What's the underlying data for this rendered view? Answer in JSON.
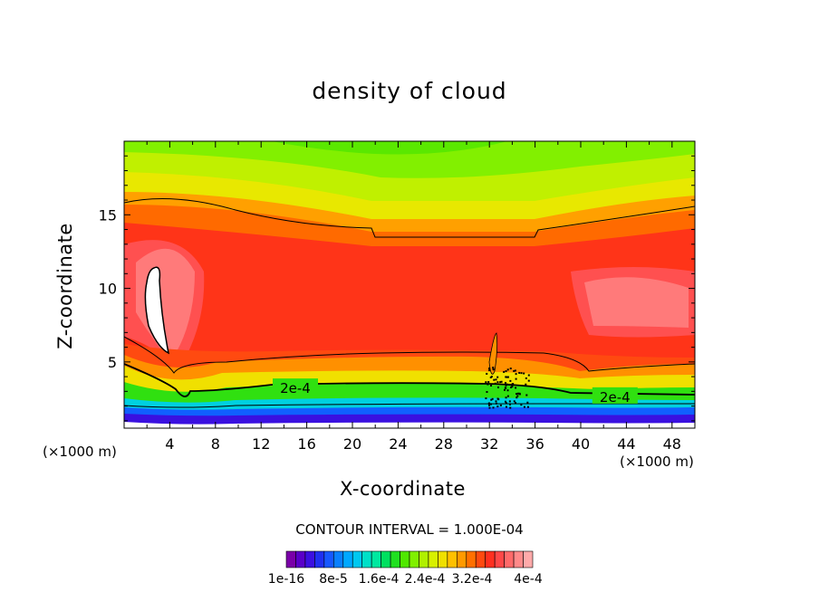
{
  "chart_data": {
    "type": "heatmap",
    "title": "density of cloud",
    "xlabel": "X-coordinate",
    "ylabel": "Z-coordinate",
    "x_unit_left": "(×1000 m)",
    "x_unit_right": "(×1000 m)",
    "xlim": [
      0,
      50
    ],
    "ylim": [
      0.5,
      20
    ],
    "x_ticks": [
      4,
      8,
      12,
      16,
      20,
      24,
      28,
      32,
      36,
      40,
      44,
      48
    ],
    "y_ticks": [
      5,
      10,
      15
    ],
    "contour_interval_text": "CONTOUR INTERVAL = 1.000E-04",
    "contour_labels": [
      {
        "text": "2e-4",
        "x": 15,
        "y": 3.2
      },
      {
        "text": "2e-4",
        "x": 43,
        "y": 2.6
      }
    ],
    "colorbar_labels": [
      "1e-16",
      "8e-5",
      "1.6e-4",
      "2.4e-4",
      "3.2e-4",
      "4e-4"
    ],
    "colorbar_colors": [
      "#7a00a8",
      "#5a00c8",
      "#3c10e0",
      "#2030f0",
      "#1858ff",
      "#0a80ff",
      "#00a8ff",
      "#00c8f0",
      "#00e0c8",
      "#00e8a0",
      "#00e060",
      "#20e020",
      "#50e800",
      "#80f000",
      "#b0f000",
      "#d8f000",
      "#f0e000",
      "#ffc000",
      "#ff9a00",
      "#ff7000",
      "#ff4a10",
      "#ff3020",
      "#ff4848",
      "#ff6a6a",
      "#ff8a8a",
      "#ffaaaa"
    ],
    "background_color": "#82f000"
  }
}
